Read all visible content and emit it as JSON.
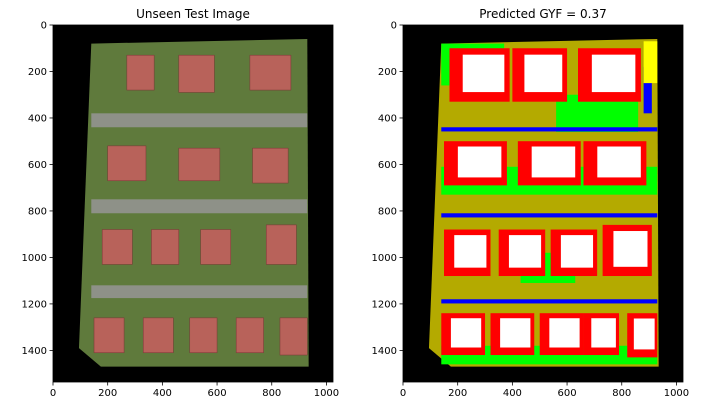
{
  "chart_data": [
    {
      "type": "image",
      "title": "Unseen Test Image",
      "xlim": [
        0,
        1024
      ],
      "ylim": [
        1536,
        0
      ],
      "xticks": [
        0,
        200,
        400,
        600,
        800,
        1000
      ],
      "yticks": [
        0,
        200,
        400,
        600,
        800,
        1000,
        1200,
        1400
      ],
      "grid": false,
      "background": "#000000",
      "content": "aerial photograph of a residential block with rows of red-roofed houses",
      "colors": {
        "roof": "#b8625a",
        "grass": "#5f7a3c",
        "pavement": "#8e9188"
      }
    },
    {
      "type": "image",
      "title": "Predicted GYF =  0.37",
      "xlim": [
        0,
        1024
      ],
      "ylim": [
        1536,
        0
      ],
      "xticks": [
        0,
        200,
        400,
        600,
        800,
        1000
      ],
      "yticks": [
        0,
        200,
        400,
        600,
        800,
        1000,
        1200,
        1400
      ],
      "grid": false,
      "background": "#000000",
      "content": "segmentation map of the same block",
      "colors": {
        "red": "#ff0000",
        "white": "#ffffff",
        "green": "#00ff00",
        "blue": "#0000ff",
        "olive": "#b4aa00",
        "yellow": "#ffff00"
      }
    }
  ]
}
